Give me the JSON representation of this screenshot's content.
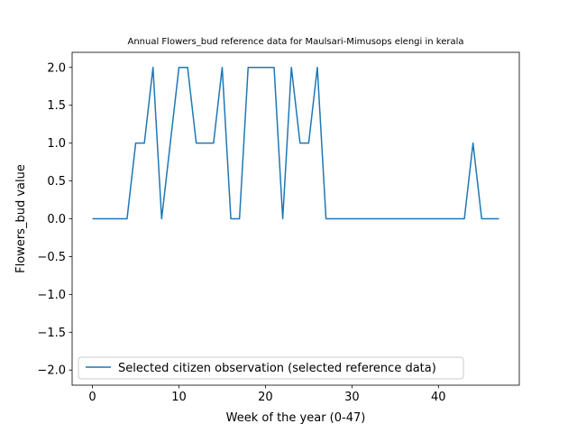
{
  "chart_data": {
    "type": "line",
    "title": "Annual Flowers_bud reference data for Maulsari-Mimusops elengi in kerala",
    "xlabel": "Week of the year (0-47)",
    "ylabel": "Flowers_bud value",
    "xlim": [
      -2.35,
      49.35
    ],
    "ylim": [
      -2.2,
      2.2
    ],
    "xticks": [
      0,
      10,
      20,
      30,
      40
    ],
    "xtick_labels": [
      "0",
      "10",
      "20",
      "30",
      "40"
    ],
    "yticks": [
      -2.0,
      -1.5,
      -1.0,
      -0.5,
      0.0,
      0.5,
      1.0,
      1.5,
      2.0
    ],
    "ytick_labels": [
      "−2.0",
      "−1.5",
      "−1.0",
      "−0.5",
      "0.0",
      "0.5",
      "1.0",
      "1.5",
      "2.0"
    ],
    "grid": false,
    "legend_position": "lower-left",
    "series": [
      {
        "name": "Selected citizen observation (selected reference data)",
        "color": "#1f77b4",
        "x": [
          0,
          1,
          2,
          3,
          4,
          5,
          6,
          7,
          8,
          9,
          10,
          11,
          12,
          13,
          14,
          15,
          16,
          17,
          18,
          19,
          20,
          21,
          22,
          23,
          24,
          25,
          26,
          27,
          28,
          29,
          30,
          31,
          32,
          33,
          34,
          35,
          36,
          37,
          38,
          39,
          40,
          41,
          42,
          43,
          44,
          45,
          46,
          47
        ],
        "y": [
          0,
          0,
          0,
          0,
          0,
          1,
          1,
          2,
          0,
          1,
          2,
          2,
          1,
          1,
          1,
          2,
          0,
          0,
          2,
          2,
          2,
          2,
          0,
          2,
          1,
          1,
          2,
          0,
          0,
          0,
          0,
          0,
          0,
          0,
          0,
          0,
          0,
          0,
          0,
          0,
          0,
          0,
          0,
          0,
          1,
          0,
          0,
          0
        ]
      }
    ]
  }
}
